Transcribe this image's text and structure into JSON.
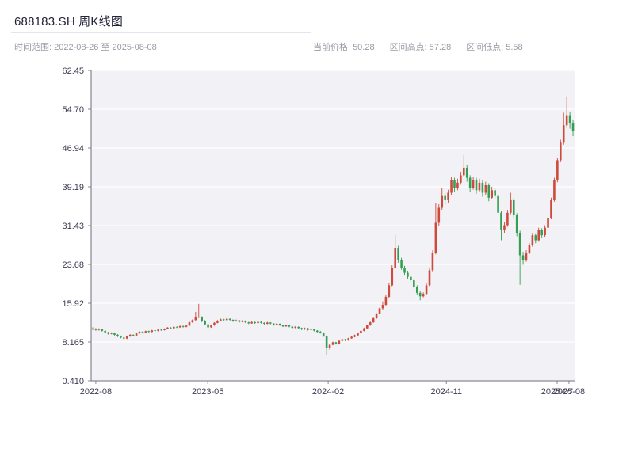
{
  "header": {
    "title": "688183.SH 周K线图"
  },
  "subtitle": {
    "range": "时间范围: 2022-08-26 至 2025-08-08"
  },
  "stats": [
    {
      "label": "当前价格:",
      "value": "50.28"
    },
    {
      "label": "区间高点:",
      "value": "57.28"
    },
    {
      "label": "区间低点:",
      "value": "5.58"
    }
  ],
  "chart_data": {
    "type": "candlestick",
    "title": "688183.SH 周K线图",
    "symbol": "688183.SH",
    "interval": "weekly",
    "start_date": "2022-08-26",
    "end_date": "2025-08-08",
    "current_price": 50.28,
    "range_high": 57.28,
    "range_low": 5.58,
    "ylim": [
      0.41,
      62.45
    ],
    "y_ticks": [
      62.45,
      54.7,
      46.94,
      39.19,
      31.43,
      23.68,
      15.92,
      8.165,
      0.41
    ],
    "y_tick_labels": [
      "62.45",
      "54.70",
      "46.94",
      "39.19",
      "31.43",
      "23.68",
      "15.92",
      "8.165",
      "0.410"
    ],
    "x_ticks": [
      {
        "label": "2022-08",
        "index": 1.0
      },
      {
        "label": "2023-05",
        "index": 36.9
      },
      {
        "label": "2024-02",
        "index": 75.5
      },
      {
        "label": "2024-11",
        "index": 113.4
      },
      {
        "label": "2025-07",
        "index": 148.9
      },
      {
        "label": "2025-08",
        "index": 152.7
      }
    ],
    "up_color": "#ce4a3c",
    "down_color": "#359e54",
    "plot_bg": "#f2f2f6",
    "grid_color": "#ffffff",
    "axis_color": "#6e6e7c",
    "candles": [
      [
        10.8,
        11.1,
        10.55,
        10.85
      ],
      [
        10.85,
        10.95,
        10.4,
        10.6
      ],
      [
        10.6,
        10.9,
        10.45,
        10.75
      ],
      [
        10.75,
        10.8,
        10.25,
        10.4
      ],
      [
        10.4,
        10.55,
        9.95,
        10.1
      ],
      [
        10.1,
        10.2,
        9.65,
        9.8
      ],
      [
        9.8,
        10.1,
        9.7,
        9.95
      ],
      [
        9.95,
        10.0,
        9.45,
        9.6
      ],
      [
        9.6,
        9.75,
        9.15,
        9.3
      ],
      [
        9.3,
        9.45,
        8.9,
        9.05
      ],
      [
        9.05,
        9.15,
        8.5,
        8.85
      ],
      [
        8.85,
        9.45,
        8.75,
        9.3
      ],
      [
        9.3,
        9.75,
        9.2,
        9.6
      ],
      [
        9.6,
        9.7,
        9.3,
        9.45
      ],
      [
        9.45,
        10.0,
        9.35,
        9.9
      ],
      [
        9.9,
        10.35,
        9.8,
        10.2
      ],
      [
        10.2,
        10.3,
        9.9,
        10.05
      ],
      [
        10.05,
        10.45,
        9.95,
        10.35
      ],
      [
        10.35,
        10.45,
        10.05,
        10.2
      ],
      [
        10.2,
        10.6,
        10.1,
        10.5
      ],
      [
        10.5,
        10.6,
        10.25,
        10.4
      ],
      [
        10.4,
        10.75,
        10.3,
        10.65
      ],
      [
        10.65,
        10.75,
        10.4,
        10.55
      ],
      [
        10.55,
        10.9,
        10.45,
        10.8
      ],
      [
        10.8,
        11.15,
        10.7,
        11.05
      ],
      [
        11.05,
        11.15,
        10.75,
        10.9
      ],
      [
        10.9,
        11.3,
        10.8,
        11.2
      ],
      [
        11.2,
        11.3,
        10.95,
        11.1
      ],
      [
        11.1,
        11.45,
        11.0,
        11.35
      ],
      [
        11.35,
        11.45,
        11.05,
        11.2
      ],
      [
        11.2,
        11.55,
        11.1,
        11.45
      ],
      [
        11.45,
        12.25,
        11.35,
        12.1
      ],
      [
        12.1,
        12.7,
        12.0,
        12.55
      ],
      [
        12.55,
        14.2,
        12.45,
        13.1
      ],
      [
        13.1,
        15.8,
        12.95,
        13.2
      ],
      [
        13.2,
        13.3,
        12.15,
        12.4
      ],
      [
        12.4,
        12.55,
        11.5,
        11.7
      ],
      [
        11.7,
        11.8,
        10.3,
        11.1
      ],
      [
        11.1,
        11.65,
        11.0,
        11.5
      ],
      [
        11.5,
        12.15,
        11.4,
        12.0
      ],
      [
        12.0,
        12.55,
        11.9,
        12.4
      ],
      [
        12.4,
        12.85,
        12.3,
        12.7
      ],
      [
        12.7,
        12.8,
        12.4,
        12.55
      ],
      [
        12.55,
        12.95,
        12.45,
        12.8
      ],
      [
        12.8,
        12.9,
        12.45,
        12.6
      ],
      [
        12.6,
        12.7,
        12.2,
        12.35
      ],
      [
        12.35,
        12.65,
        12.25,
        12.5
      ],
      [
        12.5,
        12.6,
        12.05,
        12.2
      ],
      [
        12.2,
        12.55,
        12.1,
        12.4
      ],
      [
        12.4,
        12.5,
        11.95,
        12.1
      ],
      [
        12.1,
        12.2,
        11.75,
        11.9
      ],
      [
        11.9,
        12.3,
        11.8,
        12.15
      ],
      [
        12.15,
        12.25,
        11.8,
        11.95
      ],
      [
        11.95,
        12.35,
        11.85,
        12.2
      ],
      [
        12.2,
        12.3,
        11.85,
        12.0
      ],
      [
        12.0,
        12.1,
        11.65,
        11.8
      ],
      [
        11.8,
        12.2,
        11.7,
        12.05
      ],
      [
        12.05,
        12.15,
        11.7,
        11.85
      ],
      [
        11.85,
        11.95,
        11.45,
        11.6
      ],
      [
        11.6,
        11.95,
        11.5,
        11.8
      ],
      [
        11.8,
        11.9,
        11.4,
        11.55
      ],
      [
        11.55,
        11.65,
        11.15,
        11.3
      ],
      [
        11.3,
        11.65,
        11.2,
        11.5
      ],
      [
        11.5,
        11.6,
        11.1,
        11.25
      ],
      [
        11.25,
        11.35,
        10.85,
        11.0
      ],
      [
        11.0,
        11.35,
        10.9,
        11.2
      ],
      [
        11.2,
        11.3,
        10.8,
        10.95
      ],
      [
        10.95,
        11.05,
        10.55,
        10.7
      ],
      [
        10.7,
        11.05,
        10.6,
        10.9
      ],
      [
        10.9,
        11.0,
        10.45,
        10.6
      ],
      [
        10.6,
        10.9,
        10.5,
        10.75
      ],
      [
        10.75,
        10.85,
        10.3,
        10.45
      ],
      [
        10.45,
        10.55,
        10.05,
        10.2
      ],
      [
        10.2,
        10.4,
        9.85,
        10.0
      ],
      [
        10.0,
        10.1,
        9.2,
        9.4
      ],
      [
        9.4,
        9.5,
        5.58,
        6.9
      ],
      [
        6.9,
        7.8,
        6.6,
        7.6
      ],
      [
        7.6,
        8.25,
        7.5,
        8.1
      ],
      [
        8.1,
        8.2,
        7.65,
        7.85
      ],
      [
        7.85,
        8.55,
        7.75,
        8.4
      ],
      [
        8.4,
        8.85,
        8.3,
        8.7
      ],
      [
        8.7,
        8.8,
        8.3,
        8.5
      ],
      [
        8.5,
        9.0,
        8.4,
        8.9
      ],
      [
        8.9,
        9.35,
        8.8,
        9.2
      ],
      [
        9.2,
        9.65,
        9.1,
        9.5
      ],
      [
        9.5,
        10.05,
        9.4,
        9.9
      ],
      [
        9.9,
        10.55,
        9.8,
        10.4
      ],
      [
        10.4,
        11.05,
        10.3,
        10.9
      ],
      [
        10.9,
        11.65,
        10.8,
        11.5
      ],
      [
        11.5,
        12.25,
        11.4,
        12.1
      ],
      [
        12.1,
        13.05,
        12.0,
        12.9
      ],
      [
        12.9,
        13.95,
        12.8,
        13.8
      ],
      [
        13.8,
        15.05,
        13.7,
        14.9
      ],
      [
        14.9,
        16.3,
        14.55,
        15.6
      ],
      [
        15.6,
        17.5,
        15.4,
        17.2
      ],
      [
        17.2,
        19.9,
        17.0,
        19.5
      ],
      [
        19.5,
        23.5,
        19.3,
        23.0
      ],
      [
        23.0,
        29.5,
        22.8,
        27.0
      ],
      [
        27.0,
        27.4,
        24.0,
        24.5
      ],
      [
        24.5,
        25.0,
        22.6,
        23.0
      ],
      [
        23.0,
        23.4,
        21.6,
        22.0
      ],
      [
        22.0,
        22.4,
        20.8,
        21.2
      ],
      [
        21.2,
        21.6,
        20.1,
        20.5
      ],
      [
        20.5,
        20.8,
        18.8,
        19.2
      ],
      [
        19.2,
        19.5,
        17.6,
        18.0
      ],
      [
        18.0,
        18.3,
        16.5,
        17.3
      ],
      [
        17.3,
        18.1,
        17.1,
        17.8
      ],
      [
        17.8,
        19.9,
        17.6,
        19.5
      ],
      [
        19.5,
        22.9,
        19.3,
        22.5
      ],
      [
        22.5,
        26.5,
        22.2,
        26.0
      ],
      [
        26.0,
        36.0,
        25.7,
        32.0
      ],
      [
        32.0,
        35.7,
        31.4,
        35.0
      ],
      [
        35.0,
        39.0,
        34.6,
        37.5
      ],
      [
        37.5,
        38.0,
        35.6,
        36.5
      ],
      [
        36.5,
        38.6,
        36.0,
        38.0
      ],
      [
        38.0,
        41.2,
        37.6,
        40.5
      ],
      [
        40.5,
        41.0,
        38.2,
        39.0
      ],
      [
        39.0,
        40.8,
        38.5,
        40.0
      ],
      [
        40.0,
        42.2,
        39.6,
        41.5
      ],
      [
        41.5,
        45.5,
        41.1,
        43.0
      ],
      [
        43.0,
        43.6,
        40.2,
        41.0
      ],
      [
        41.0,
        41.5,
        38.2,
        39.0
      ],
      [
        39.0,
        41.2,
        38.6,
        40.5
      ],
      [
        40.5,
        41.0,
        37.8,
        38.5
      ],
      [
        38.5,
        40.8,
        38.1,
        40.0
      ],
      [
        40.0,
        40.5,
        37.2,
        38.0
      ],
      [
        38.0,
        40.2,
        37.6,
        39.5
      ],
      [
        39.5,
        39.9,
        36.3,
        37.0
      ],
      [
        37.0,
        39.2,
        36.7,
        38.5
      ],
      [
        38.5,
        38.9,
        36.8,
        37.5
      ],
      [
        37.5,
        37.9,
        33.3,
        34.0
      ],
      [
        34.0,
        34.4,
        28.5,
        30.5
      ],
      [
        30.5,
        32.2,
        30.0,
        31.5
      ],
      [
        31.5,
        34.6,
        31.2,
        34.0
      ],
      [
        34.0,
        38.0,
        33.7,
        36.5
      ],
      [
        36.5,
        36.9,
        32.8,
        33.5
      ],
      [
        33.5,
        33.9,
        29.3,
        30.0
      ],
      [
        30.0,
        30.4,
        19.6,
        25.5
      ],
      [
        25.5,
        26.2,
        23.6,
        24.5
      ],
      [
        24.5,
        26.5,
        24.2,
        26.0
      ],
      [
        26.0,
        28.0,
        25.7,
        27.5
      ],
      [
        27.5,
        30.0,
        27.2,
        29.5
      ],
      [
        29.5,
        29.9,
        27.9,
        28.5
      ],
      [
        28.5,
        31.0,
        28.2,
        30.5
      ],
      [
        30.5,
        30.9,
        28.9,
        29.5
      ],
      [
        29.5,
        31.5,
        29.2,
        31.0
      ],
      [
        31.0,
        33.5,
        30.7,
        33.0
      ],
      [
        33.0,
        37.0,
        32.7,
        36.5
      ],
      [
        36.5,
        41.0,
        36.2,
        40.5
      ],
      [
        40.5,
        45.0,
        40.1,
        44.5
      ],
      [
        44.5,
        48.6,
        44.1,
        48.0
      ],
      [
        48.0,
        54.0,
        47.6,
        51.5
      ],
      [
        51.5,
        57.28,
        51.0,
        53.5
      ],
      [
        53.5,
        54.2,
        50.8,
        52.0
      ],
      [
        52.0,
        52.6,
        49.3,
        50.28
      ]
    ]
  }
}
